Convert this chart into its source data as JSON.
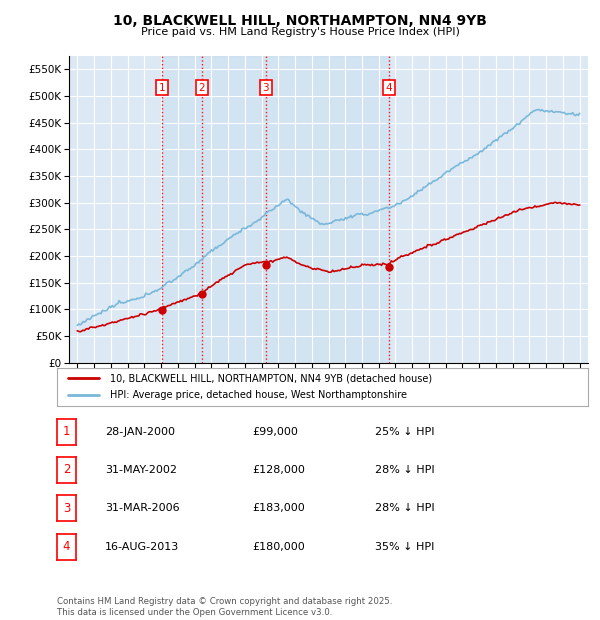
{
  "title": "10, BLACKWELL HILL, NORTHAMPTON, NN4 9YB",
  "subtitle": "Price paid vs. HM Land Registry's House Price Index (HPI)",
  "ylim": [
    0,
    575000
  ],
  "yticks": [
    0,
    50000,
    100000,
    150000,
    200000,
    250000,
    300000,
    350000,
    400000,
    450000,
    500000,
    550000
  ],
  "ytick_labels": [
    "£0",
    "£50K",
    "£100K",
    "£150K",
    "£200K",
    "£250K",
    "£300K",
    "£350K",
    "£400K",
    "£450K",
    "£500K",
    "£550K"
  ],
  "plot_bg_color": "#dce9f5",
  "grid_color": "#ffffff",
  "sale_color": "#cc0000",
  "hpi_color": "#7ab8d9",
  "shade_color": "#c5ddf0",
  "transactions": [
    {
      "id": 1,
      "date": "28-JAN-2000",
      "price": 99000,
      "pct": "25%",
      "x": 2000.07
    },
    {
      "id": 2,
      "date": "31-MAY-2002",
      "price": 128000,
      "pct": "28%",
      "x": 2002.42
    },
    {
      "id": 3,
      "date": "31-MAR-2006",
      "price": 183000,
      "pct": "28%",
      "x": 2006.25
    },
    {
      "id": 4,
      "date": "16-AUG-2013",
      "price": 180000,
      "pct": "35%",
      "x": 2013.62
    }
  ],
  "legend_sale": "10, BLACKWELL HILL, NORTHAMPTON, NN4 9YB (detached house)",
  "legend_hpi": "HPI: Average price, detached house, West Northamptonshire",
  "footnote": "Contains HM Land Registry data © Crown copyright and database right 2025.\nThis data is licensed under the Open Government Licence v3.0.",
  "xmin": 1994.5,
  "xmax": 2025.5,
  "xstart": 1995,
  "xend": 2025
}
